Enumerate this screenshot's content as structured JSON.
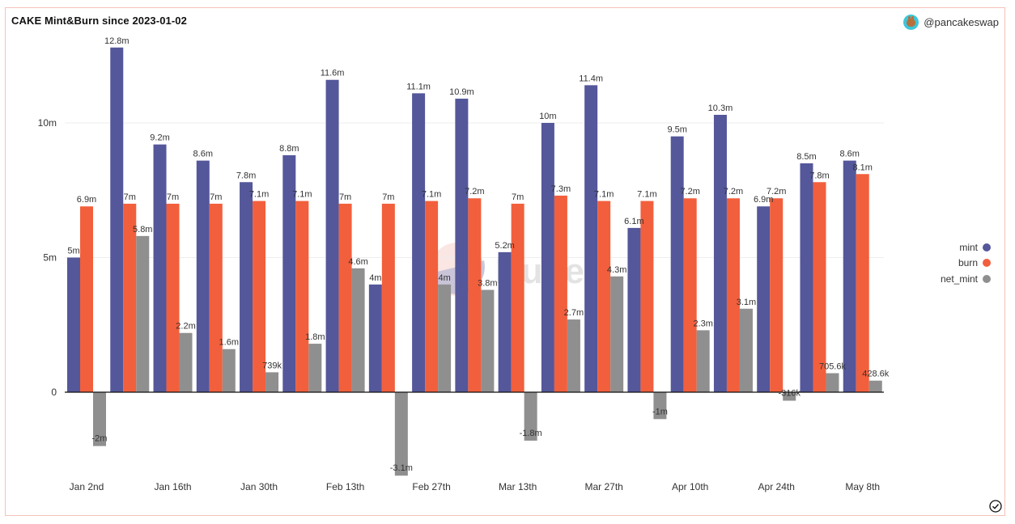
{
  "header": {
    "title": "CAKE Mint&Burn since 2023-01-02",
    "author": "@pancakeswap",
    "author_icon": "pancakeswap-bunny-avatar"
  },
  "watermark": "Dune",
  "footer": {
    "icon": "check-circle-icon"
  },
  "colors": {
    "mint": "#54579a",
    "burn": "#f25f3c",
    "net_mint": "#8f8f8f",
    "border": "#f4c2b8"
  },
  "chart_data": {
    "type": "bar",
    "title": "CAKE Mint&Burn since 2023-01-02",
    "xlabel": "",
    "ylabel": "",
    "ylim": [
      -3.5,
      13.5
    ],
    "y_ticks": [
      {
        "value": 0,
        "label": "0"
      },
      {
        "value": 5,
        "label": "5m"
      },
      {
        "value": 10,
        "label": "10m"
      }
    ],
    "grid": true,
    "legend_position": "right",
    "categories": [
      "2023-01-02",
      "2023-01-09",
      "2023-01-16",
      "2023-01-23",
      "2023-01-30",
      "2023-02-06",
      "2023-02-13",
      "2023-02-20",
      "2023-02-27",
      "2023-03-06",
      "2023-03-13",
      "2023-03-20",
      "2023-03-27",
      "2023-04-03",
      "2023-04-10",
      "2023-04-17",
      "2023-04-24",
      "2023-05-01",
      "2023-05-08"
    ],
    "x_tick_labels": [
      {
        "index": 0,
        "label": "Jan 2nd"
      },
      {
        "index": 2,
        "label": "Jan 16th"
      },
      {
        "index": 4,
        "label": "Jan 30th"
      },
      {
        "index": 6,
        "label": "Feb 13th"
      },
      {
        "index": 8,
        "label": "Feb 27th"
      },
      {
        "index": 10,
        "label": "Mar 13th"
      },
      {
        "index": 12,
        "label": "Mar 27th"
      },
      {
        "index": 14,
        "label": "Apr 10th"
      },
      {
        "index": 16,
        "label": "Apr 24th"
      },
      {
        "index": 18,
        "label": "May 8th"
      }
    ],
    "series": [
      {
        "name": "mint",
        "color": "#54579a",
        "values": [
          5.0,
          12.8,
          9.2,
          8.6,
          7.8,
          8.8,
          11.6,
          4.0,
          11.1,
          10.9,
          5.2,
          10.0,
          11.4,
          6.1,
          9.5,
          10.3,
          6.9,
          8.5,
          8.6
        ],
        "labels": [
          "5m",
          "12.8m",
          "9.2m",
          "8.6m",
          "7.8m",
          "8.8m",
          "11.6m",
          "4m",
          "11.1m",
          "10.9m",
          "5.2m",
          "10m",
          "11.4m",
          "6.1m",
          "9.5m",
          "10.3m",
          "6.9m",
          "8.5m",
          "8.6m"
        ]
      },
      {
        "name": "burn",
        "color": "#f25f3c",
        "values": [
          6.9,
          7.0,
          7.0,
          7.0,
          7.1,
          7.1,
          7.0,
          7.0,
          7.1,
          7.2,
          7.0,
          7.3,
          7.1,
          7.1,
          7.2,
          7.2,
          7.2,
          7.8,
          8.1
        ],
        "labels": [
          "6.9m",
          "7m",
          "7m",
          "7m",
          "7.1m",
          "7.1m",
          "7m",
          "7m",
          "7.1m",
          "7.2m",
          "7m",
          "7.3m",
          "7.1m",
          "7.1m",
          "7.2m",
          "7.2m",
          "7.2m",
          "7.8m",
          "8.1m"
        ]
      },
      {
        "name": "net_mint",
        "color": "#8f8f8f",
        "values": [
          -2.0,
          5.8,
          2.2,
          1.6,
          0.739,
          1.8,
          4.6,
          -3.1,
          4.0,
          3.8,
          -1.8,
          2.7,
          4.3,
          -1.0,
          2.3,
          3.1,
          -0.316,
          0.7056,
          0.4286
        ],
        "labels": [
          "-2m",
          "5.8m",
          "2.2m",
          "1.6m",
          "739k",
          "1.8m",
          "4.6m",
          "-3.1m",
          "4m",
          "3.8m",
          "-1.8m",
          "2.7m",
          "4.3m",
          "-1m",
          "2.3m",
          "3.1m",
          "-316k",
          "705.6k",
          "428.6k"
        ]
      }
    ]
  }
}
